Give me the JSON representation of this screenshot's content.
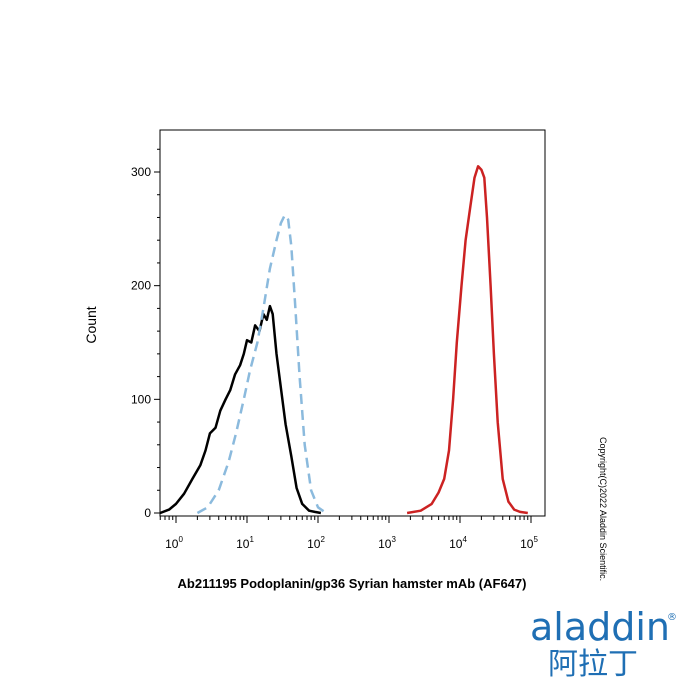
{
  "chart_data": {
    "type": "line",
    "title": "",
    "xlabel": "Ab211195 Podoplanin/gp36 Syrian hamster mAb (AF647)",
    "ylabel": "Count",
    "x_scale": "log",
    "xlim": [
      0.5,
      150000
    ],
    "ylim": [
      0,
      340
    ],
    "x_ticks": [
      {
        "base": "10",
        "exp": "0"
      },
      {
        "base": "10",
        "exp": "1"
      },
      {
        "base": "10",
        "exp": "2"
      },
      {
        "base": "10",
        "exp": "3"
      },
      {
        "base": "10",
        "exp": "4"
      },
      {
        "base": "10",
        "exp": "5"
      }
    ],
    "y_ticks": [
      "0",
      "100",
      "200",
      "300"
    ],
    "y_tick_values": [
      0,
      100,
      200,
      300
    ],
    "grid": false,
    "series": [
      {
        "style": "solid",
        "color": "#000000",
        "x": [
          0.6,
          0.8,
          1.0,
          1.3,
          1.7,
          2.2,
          2.6,
          3.0,
          3.6,
          4.2,
          5.0,
          5.8,
          6.8,
          8.0,
          9.0,
          10.0,
          11.5,
          13.0,
          15.0,
          17.0,
          19.0,
          21.0,
          23.0,
          26.0,
          30.0,
          35.0,
          42.0,
          50.0,
          60.0,
          75.0,
          90.0,
          110.0
        ],
        "y": [
          0,
          3,
          8,
          17,
          30,
          42,
          55,
          70,
          75,
          90,
          100,
          108,
          122,
          130,
          140,
          152,
          150,
          165,
          160,
          175,
          170,
          182,
          175,
          140,
          110,
          78,
          50,
          22,
          8,
          2,
          1,
          0
        ]
      },
      {
        "style": "dashed",
        "color": "#8bbadd",
        "x": [
          2.0,
          2.8,
          4.0,
          5.5,
          7.0,
          9.0,
          11.0,
          14.0,
          17.0,
          21.0,
          26.0,
          30.0,
          34.0,
          38.0,
          42.0,
          48.0,
          55.0,
          65.0,
          80.0,
          100.0,
          130.0
        ],
        "y": [
          0,
          5,
          20,
          45,
          70,
          100,
          125,
          150,
          180,
          215,
          240,
          255,
          262,
          258,
          235,
          180,
          120,
          60,
          20,
          5,
          0
        ]
      },
      {
        "style": "solid",
        "color": "#cc2222",
        "x": [
          1800,
          2800,
          4000,
          5000,
          6000,
          7000,
          8000,
          9000,
          10500,
          12000,
          14000,
          16000,
          18000,
          20000,
          22000,
          24000,
          27000,
          30000,
          34000,
          40000,
          48000,
          58000,
          70000,
          90000
        ],
        "y": [
          0,
          2,
          8,
          18,
          30,
          55,
          100,
          150,
          200,
          240,
          270,
          295,
          305,
          302,
          295,
          260,
          200,
          140,
          80,
          30,
          10,
          3,
          1,
          0
        ]
      }
    ]
  },
  "copyright": "Copyright(C)2022 Aladdin Scientific.",
  "logo": {
    "english": "aladdin",
    "chinese": "阿拉丁",
    "registered": "®"
  }
}
